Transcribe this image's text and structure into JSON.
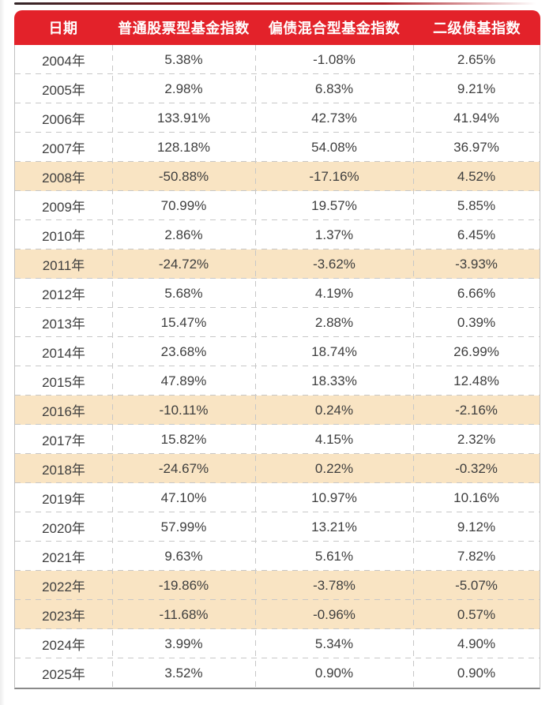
{
  "table": {
    "columns": [
      "日期",
      "普通股票型基金指数",
      "偏债混合型基金指数",
      "二级债基指数"
    ],
    "rows": [
      {
        "year": "2004年",
        "values": [
          "5.38%",
          "-1.08%",
          "2.65%"
        ],
        "highlight": false
      },
      {
        "year": "2005年",
        "values": [
          "2.98%",
          "6.83%",
          "9.21%"
        ],
        "highlight": false
      },
      {
        "year": "2006年",
        "values": [
          "133.91%",
          "42.73%",
          "41.94%"
        ],
        "highlight": false
      },
      {
        "year": "2007年",
        "values": [
          "128.18%",
          "54.08%",
          "36.97%"
        ],
        "highlight": false
      },
      {
        "year": "2008年",
        "values": [
          "-50.88%",
          "-17.16%",
          "4.52%"
        ],
        "highlight": true
      },
      {
        "year": "2009年",
        "values": [
          "70.99%",
          "19.57%",
          "5.85%"
        ],
        "highlight": false
      },
      {
        "year": "2010年",
        "values": [
          "2.86%",
          "1.37%",
          "6.45%"
        ],
        "highlight": false
      },
      {
        "year": "2011年",
        "values": [
          "-24.72%",
          "-3.62%",
          "-3.93%"
        ],
        "highlight": true
      },
      {
        "year": "2012年",
        "values": [
          "5.68%",
          "4.19%",
          "6.66%"
        ],
        "highlight": false
      },
      {
        "year": "2013年",
        "values": [
          "15.47%",
          "2.88%",
          "0.39%"
        ],
        "highlight": false
      },
      {
        "year": "2014年",
        "values": [
          "23.68%",
          "18.74%",
          "26.99%"
        ],
        "highlight": false
      },
      {
        "year": "2015年",
        "values": [
          "47.89%",
          "18.33%",
          "12.48%"
        ],
        "highlight": false
      },
      {
        "year": "2016年",
        "values": [
          "-10.11%",
          "0.24%",
          "-2.16%"
        ],
        "highlight": true
      },
      {
        "year": "2017年",
        "values": [
          "15.82%",
          "4.15%",
          "2.32%"
        ],
        "highlight": false
      },
      {
        "year": "2018年",
        "values": [
          "-24.67%",
          "0.22%",
          "-0.32%"
        ],
        "highlight": true
      },
      {
        "year": "2019年",
        "values": [
          "47.10%",
          "10.97%",
          "10.16%"
        ],
        "highlight": false
      },
      {
        "year": "2020年",
        "values": [
          "57.99%",
          "13.21%",
          "9.12%"
        ],
        "highlight": false
      },
      {
        "year": "2021年",
        "values": [
          "9.63%",
          "5.61%",
          "7.82%"
        ],
        "highlight": false
      },
      {
        "year": "2022年",
        "values": [
          "-19.86%",
          "-3.78%",
          "-5.07%"
        ],
        "highlight": true
      },
      {
        "year": "2023年",
        "values": [
          "-11.68%",
          "-0.96%",
          "0.57%"
        ],
        "highlight": true
      },
      {
        "year": "2024年",
        "values": [
          "3.99%",
          "5.34%",
          "4.90%"
        ],
        "highlight": false
      },
      {
        "year": "2025年",
        "values": [
          "3.52%",
          "0.90%",
          "0.90%"
        ],
        "highlight": false
      }
    ]
  },
  "chart_data": {
    "type": "table",
    "title": "",
    "unit": "%",
    "categories": [
      "2004",
      "2005",
      "2006",
      "2007",
      "2008",
      "2009",
      "2010",
      "2011",
      "2012",
      "2013",
      "2014",
      "2015",
      "2016",
      "2017",
      "2018",
      "2019",
      "2020",
      "2021",
      "2022",
      "2023",
      "2024",
      "2025"
    ],
    "series": [
      {
        "name": "普通股票型基金指数",
        "values": [
          5.38,
          2.98,
          133.91,
          128.18,
          -50.88,
          70.99,
          2.86,
          -24.72,
          5.68,
          15.47,
          23.68,
          47.89,
          -10.11,
          15.82,
          -24.67,
          47.1,
          57.99,
          9.63,
          -19.86,
          -11.68,
          3.99,
          3.52
        ]
      },
      {
        "name": "偏债混合型基金指数",
        "values": [
          -1.08,
          6.83,
          42.73,
          54.08,
          -17.16,
          19.57,
          1.37,
          -3.62,
          4.19,
          2.88,
          18.74,
          18.33,
          0.24,
          4.15,
          0.22,
          10.97,
          13.21,
          5.61,
          -3.78,
          -0.96,
          5.34,
          0.9
        ]
      },
      {
        "name": "二级债基指数",
        "values": [
          2.65,
          9.21,
          41.94,
          36.97,
          4.52,
          5.85,
          6.45,
          -3.93,
          6.66,
          0.39,
          26.99,
          12.48,
          -2.16,
          2.32,
          -0.32,
          10.16,
          9.12,
          7.82,
          -5.07,
          0.57,
          4.9,
          0.9
        ]
      }
    ],
    "highlighted_years": [
      "2008",
      "2011",
      "2016",
      "2018",
      "2022",
      "2023"
    ],
    "layout": {
      "header_position": "top",
      "grid": "dashed"
    }
  },
  "colors": {
    "header_bg": "#e3222a",
    "header_text": "#ffffff",
    "highlight_row_bg": "#f9e4c3",
    "body_text": "#3e3e3e",
    "dashed_border": "#c7c7c7",
    "outer_border": "#8a8a8a"
  }
}
